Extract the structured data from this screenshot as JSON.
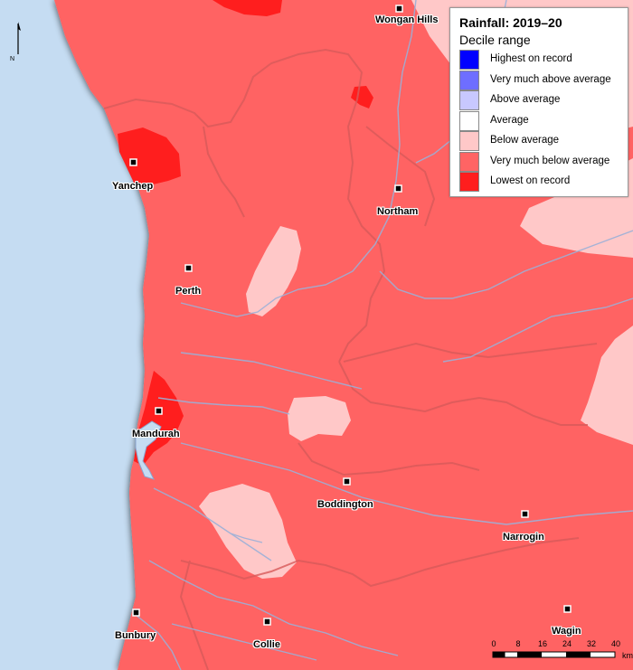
{
  "legend": {
    "title": "Rainfall: 2019–20",
    "subtitle": "Decile range",
    "items": [
      {
        "label": "Highest on record",
        "color": "#0000ff"
      },
      {
        "label": "Very much above average",
        "color": "#6e6eff"
      },
      {
        "label": "Above average",
        "color": "#c8c8ff"
      },
      {
        "label": "Average",
        "color": "#ffffff"
      },
      {
        "label": "Below average",
        "color": "#ffc8c8"
      },
      {
        "label": "Very much below average",
        "color": "#ff6464"
      },
      {
        "label": "Lowest on record",
        "color": "#ff1e1e"
      }
    ]
  },
  "north_arrow": {
    "label": "N"
  },
  "towns": [
    {
      "name": "Wongan Hills"
    },
    {
      "name": "Yanchep"
    },
    {
      "name": "Northam"
    },
    {
      "name": "Perth"
    },
    {
      "name": "Mandurah"
    },
    {
      "name": "Boddington"
    },
    {
      "name": "Narrogin"
    },
    {
      "name": "Bunbury"
    },
    {
      "name": "Collie"
    },
    {
      "name": "Wagin"
    }
  ],
  "scale_bar": {
    "ticks": [
      "0",
      "8",
      "16",
      "24",
      "32",
      "40"
    ],
    "unit": "km"
  },
  "colors": {
    "ocean": "#c5dcf2",
    "river": "#9bb0d8"
  }
}
